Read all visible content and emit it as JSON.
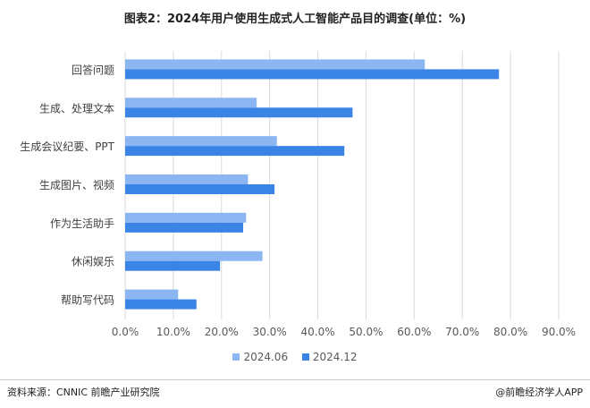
{
  "chart_data": {
    "type": "bar",
    "orientation": "horizontal",
    "title": "图表2：2024年用户使用生成式人工智能产品目的调查(单位：%)",
    "categories": [
      "回答问题",
      "生成、处理文本",
      "生成会议纪要、PPT",
      "生成图片、视频",
      "作为生活助手",
      "休闲娱乐",
      "帮助写代码"
    ],
    "series": [
      {
        "name": "2024.06",
        "color": "#8cb6f2",
        "values": [
          62.2,
          27.3,
          31.5,
          25.5,
          25.1,
          28.5,
          11.0
        ]
      },
      {
        "name": "2024.12",
        "color": "#3a84e6",
        "values": [
          77.6,
          47.2,
          45.5,
          31.0,
          24.5,
          19.7,
          14.8
        ]
      }
    ],
    "xlim": [
      0,
      90
    ],
    "xticks": [
      "0.0%",
      "10.0%",
      "20.0%",
      "30.0%",
      "40.0%",
      "50.0%",
      "60.0%",
      "70.0%",
      "80.0%",
      "90.0%"
    ],
    "grid": true,
    "legend": "bottom"
  },
  "footer": {
    "source": "资料来源：CNNIC 前瞻产业研究院",
    "brand": "@前瞻经济学人APP"
  }
}
